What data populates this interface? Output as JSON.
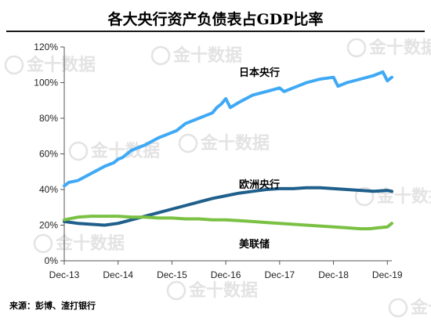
{
  "title": "各大央行资产负债表占GDP比率",
  "source": "来源：彭博、渣打银行",
  "watermark": "金十数据",
  "chart_data": {
    "type": "line",
    "ylim": [
      0,
      120
    ],
    "yticks": [
      0,
      20,
      40,
      60,
      80,
      100,
      120
    ],
    "ytick_labels": [
      "0%",
      "20%",
      "40%",
      "60%",
      "80%",
      "100%",
      "120%"
    ],
    "xlim": [
      "2013-12",
      "2020-01"
    ],
    "xtick_labels": [
      "Dec-13",
      "Dec-14",
      "Dec-15",
      "Dec-16",
      "Dec-17",
      "Dec-18",
      "Dec-19"
    ],
    "grid": false,
    "series": [
      {
        "name": "日本央行",
        "color": "#3fa9f5",
        "points": [
          [
            "2013-12",
            42
          ],
          [
            "2014-01",
            44
          ],
          [
            "2014-03",
            45
          ],
          [
            "2014-06",
            49
          ],
          [
            "2014-09",
            53
          ],
          [
            "2014-11",
            55
          ],
          [
            "2014-12",
            57
          ],
          [
            "2015-01",
            58
          ],
          [
            "2015-03",
            62
          ],
          [
            "2015-06",
            65
          ],
          [
            "2015-09",
            69
          ],
          [
            "2015-12",
            72
          ],
          [
            "2016-01",
            73
          ],
          [
            "2016-03",
            77
          ],
          [
            "2016-06",
            80
          ],
          [
            "2016-09",
            83
          ],
          [
            "2016-10",
            86
          ],
          [
            "2016-11",
            88
          ],
          [
            "2016-12",
            91
          ],
          [
            "2017-01",
            86
          ],
          [
            "2017-03",
            89
          ],
          [
            "2017-06",
            93
          ],
          [
            "2017-09",
            95
          ],
          [
            "2017-12",
            97
          ],
          [
            "2018-01",
            95
          ],
          [
            "2018-03",
            97
          ],
          [
            "2018-06",
            100
          ],
          [
            "2018-09",
            102
          ],
          [
            "2018-12",
            103
          ],
          [
            "2019-01",
            98
          ],
          [
            "2019-03",
            100
          ],
          [
            "2019-06",
            102
          ],
          [
            "2019-09",
            104
          ],
          [
            "2019-11",
            106
          ],
          [
            "2019-12",
            101
          ],
          [
            "2020-01",
            103
          ]
        ]
      },
      {
        "name": "欧洲央行",
        "color": "#1f5f8b",
        "points": [
          [
            "2013-12",
            22
          ],
          [
            "2014-03",
            21
          ],
          [
            "2014-06",
            20.5
          ],
          [
            "2014-09",
            20
          ],
          [
            "2014-12",
            21
          ],
          [
            "2015-03",
            23
          ],
          [
            "2015-06",
            25
          ],
          [
            "2015-09",
            27
          ],
          [
            "2015-12",
            29
          ],
          [
            "2016-03",
            31
          ],
          [
            "2016-06",
            33
          ],
          [
            "2016-09",
            35
          ],
          [
            "2016-12",
            36.5
          ],
          [
            "2017-03",
            38
          ],
          [
            "2017-06",
            39
          ],
          [
            "2017-09",
            40
          ],
          [
            "2017-12",
            40.5
          ],
          [
            "2018-03",
            40.5
          ],
          [
            "2018-06",
            41
          ],
          [
            "2018-09",
            41
          ],
          [
            "2018-12",
            40.5
          ],
          [
            "2019-03",
            40
          ],
          [
            "2019-06",
            39.5
          ],
          [
            "2019-09",
            39
          ],
          [
            "2019-12",
            39.5
          ],
          [
            "2020-01",
            39
          ]
        ]
      },
      {
        "name": "美联储",
        "color": "#7ac143",
        "points": [
          [
            "2013-12",
            23
          ],
          [
            "2014-03",
            24.5
          ],
          [
            "2014-06",
            25
          ],
          [
            "2014-09",
            25
          ],
          [
            "2014-12",
            25
          ],
          [
            "2015-03",
            24.5
          ],
          [
            "2015-06",
            24.5
          ],
          [
            "2015-09",
            24
          ],
          [
            "2015-12",
            24
          ],
          [
            "2016-03",
            23.5
          ],
          [
            "2016-06",
            23.5
          ],
          [
            "2016-09",
            23
          ],
          [
            "2016-12",
            23
          ],
          [
            "2017-03",
            22.5
          ],
          [
            "2017-06",
            22
          ],
          [
            "2017-09",
            21.5
          ],
          [
            "2017-12",
            21
          ],
          [
            "2018-03",
            20.5
          ],
          [
            "2018-06",
            20
          ],
          [
            "2018-09",
            19.5
          ],
          [
            "2018-12",
            19
          ],
          [
            "2019-03",
            18.5
          ],
          [
            "2019-06",
            18
          ],
          [
            "2019-08",
            18
          ],
          [
            "2019-10",
            18.5
          ],
          [
            "2019-12",
            19
          ],
          [
            "2020-01",
            21
          ]
        ]
      }
    ]
  }
}
